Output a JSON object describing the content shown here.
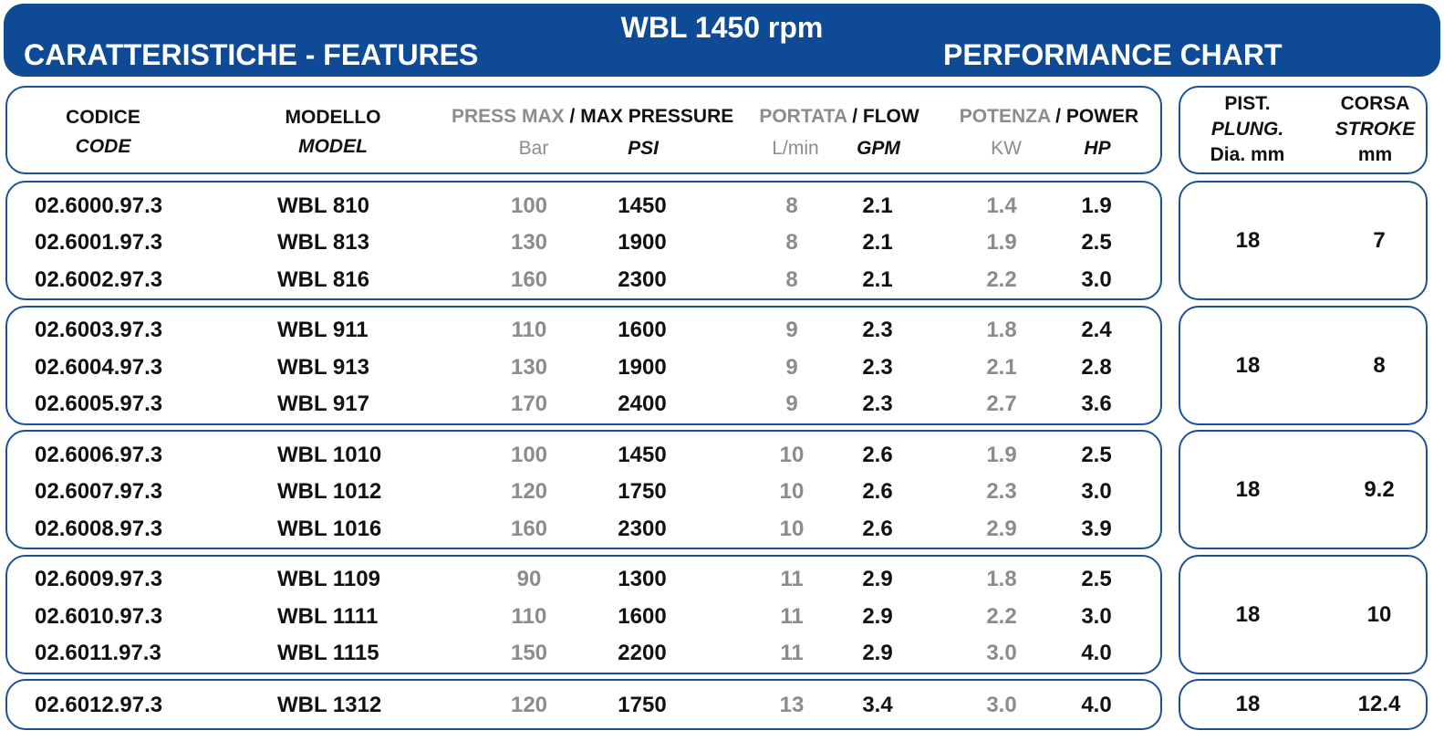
{
  "banner": {
    "top_title": "WBL 1450 rpm",
    "left_title": "CARATTERISTICHE - FEATURES",
    "right_title": "PERFORMANCE CHART"
  },
  "headers": {
    "code_it": "CODICE",
    "code_en": "CODE",
    "model_it": "MODELLO",
    "model_en": "MODEL",
    "pressure_it": "PRESS MAX",
    "pressure_sep": " / ",
    "pressure_en": "MAX PRESSURE",
    "pressure_unit1": "Bar",
    "pressure_unit2": "PSI",
    "flow_it": "PORTATA",
    "flow_sep": " / ",
    "flow_en": "FLOW",
    "flow_unit1": "L/min",
    "flow_unit2": "GPM",
    "power_it": "POTENZA",
    "power_sep": " / ",
    "power_en": "POWER",
    "power_unit1": "KW",
    "power_unit2": "HP",
    "plunger_it": "PIST.",
    "plunger_en": "PLUNG.",
    "plunger_unit": "Dia. mm",
    "stroke_it": "CORSA",
    "stroke_en": "STROKE",
    "stroke_unit": "mm"
  },
  "groups": [
    {
      "plunger": "18",
      "stroke": "7",
      "rows": [
        {
          "code": "02.6000.97.3",
          "model": "WBL 810",
          "bar": "100",
          "psi": "1450",
          "lmin": "8",
          "gpm": "2.1",
          "kw": "1.4",
          "hp": "1.9"
        },
        {
          "code": "02.6001.97.3",
          "model": "WBL 813",
          "bar": "130",
          "psi": "1900",
          "lmin": "8",
          "gpm": "2.1",
          "kw": "1.9",
          "hp": "2.5"
        },
        {
          "code": "02.6002.97.3",
          "model": "WBL 816",
          "bar": "160",
          "psi": "2300",
          "lmin": "8",
          "gpm": "2.1",
          "kw": "2.2",
          "hp": "3.0"
        }
      ]
    },
    {
      "plunger": "18",
      "stroke": "8",
      "rows": [
        {
          "code": "02.6003.97.3",
          "model": "WBL 911",
          "bar": "110",
          "psi": "1600",
          "lmin": "9",
          "gpm": "2.3",
          "kw": "1.8",
          "hp": "2.4"
        },
        {
          "code": "02.6004.97.3",
          "model": "WBL 913",
          "bar": "130",
          "psi": "1900",
          "lmin": "9",
          "gpm": "2.3",
          "kw": "2.1",
          "hp": "2.8"
        },
        {
          "code": "02.6005.97.3",
          "model": "WBL 917",
          "bar": "170",
          "psi": "2400",
          "lmin": "9",
          "gpm": "2.3",
          "kw": "2.7",
          "hp": "3.6"
        }
      ]
    },
    {
      "plunger": "18",
      "stroke": "9.2",
      "rows": [
        {
          "code": "02.6006.97.3",
          "model": "WBL 1010",
          "bar": "100",
          "psi": "1450",
          "lmin": "10",
          "gpm": "2.6",
          "kw": "1.9",
          "hp": "2.5"
        },
        {
          "code": "02.6007.97.3",
          "model": "WBL 1012",
          "bar": "120",
          "psi": "1750",
          "lmin": "10",
          "gpm": "2.6",
          "kw": "2.3",
          "hp": "3.0"
        },
        {
          "code": "02.6008.97.3",
          "model": "WBL 1016",
          "bar": "160",
          "psi": "2300",
          "lmin": "10",
          "gpm": "2.6",
          "kw": "2.9",
          "hp": "3.9"
        }
      ]
    },
    {
      "plunger": "18",
      "stroke": "10",
      "rows": [
        {
          "code": "02.6009.97.3",
          "model": "WBL 1109",
          "bar": "90",
          "psi": "1300",
          "lmin": "11",
          "gpm": "2.9",
          "kw": "1.8",
          "hp": "2.5"
        },
        {
          "code": "02.6010.97.3",
          "model": "WBL 1111",
          "bar": "110",
          "psi": "1600",
          "lmin": "11",
          "gpm": "2.9",
          "kw": "2.2",
          "hp": "3.0"
        },
        {
          "code": "02.6011.97.3",
          "model": "WBL 1115",
          "bar": "150",
          "psi": "2200",
          "lmin": "11",
          "gpm": "2.9",
          "kw": "3.0",
          "hp": "4.0"
        }
      ]
    },
    {
      "plunger": "18",
      "stroke": "12.4",
      "rows": [
        {
          "code": "02.6012.97.3",
          "model": "WBL 1312",
          "bar": "120",
          "psi": "1750",
          "lmin": "13",
          "gpm": "3.4",
          "kw": "3.0",
          "hp": "4.0"
        }
      ]
    }
  ],
  "colors": {
    "brand_blue": "#0f4a96",
    "border_blue": "#1c4f99",
    "gray_text": "#8c8c8c"
  }
}
